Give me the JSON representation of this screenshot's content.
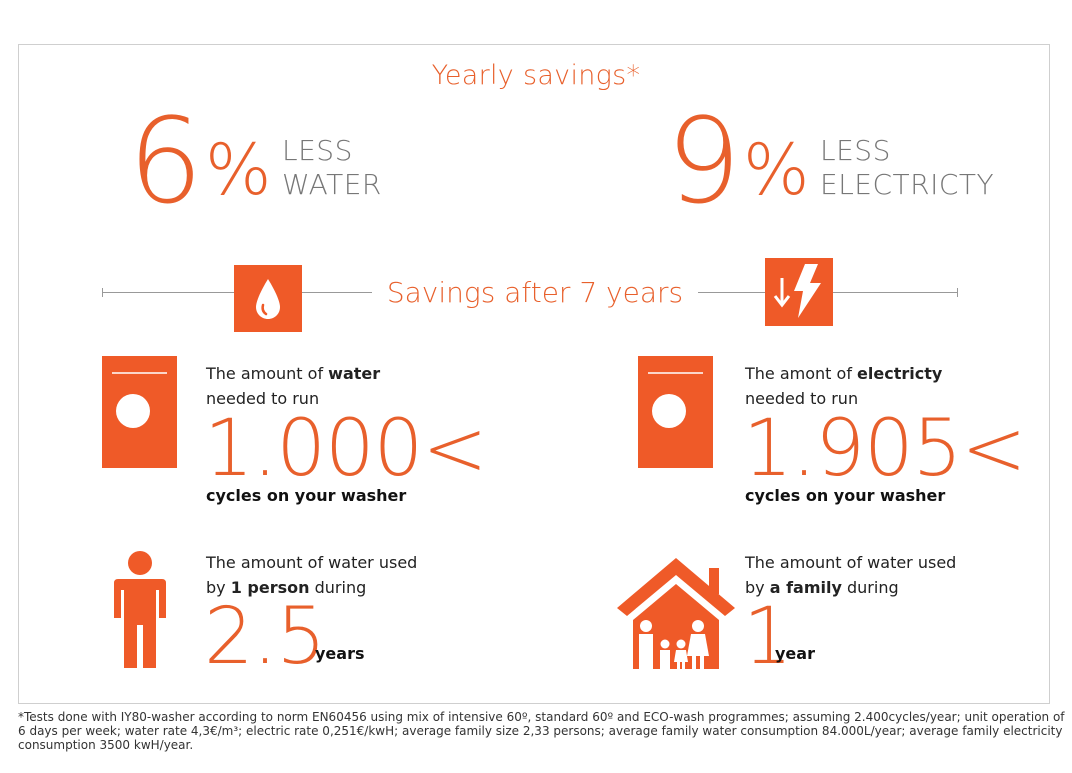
{
  "title": "Yearly savings*",
  "water_stat": {
    "number": "6",
    "percent": "%",
    "line1": "LESS",
    "line2": "WATER"
  },
  "electricity_stat": {
    "number": "9",
    "percent": "%",
    "line1": "LESS",
    "line2": "ELECTRICTY"
  },
  "section_title": "Savings after 7 years",
  "water_cycles": {
    "pre": "The amount of ",
    "bold": "water",
    "line2": "needed to run",
    "number": "1.000<",
    "suffix": "cycles on your washer"
  },
  "electricity_cycles": {
    "pre": "The amont of ",
    "bold": "electricty",
    "line2": "needed to run",
    "number": "1.905<",
    "suffix": "cycles on your washer"
  },
  "person": {
    "line1": "The amount of water used",
    "pre": "by ",
    "bold": "1 person",
    "post": " during",
    "number": "2.5",
    "unit": "years"
  },
  "family": {
    "line1": "The amount of water used",
    "pre": "by ",
    "bold": "a family",
    "post": " during",
    "number": "1",
    "unit": "year"
  },
  "footnote": "*Tests done with IY80-washer according to norm EN60456 using mix of intensive 60º, standard 60º and ECO-wash programmes; assuming 2.400cycles/year; unit operation of 6 days per week; water rate 4,3€/m³; electric rate 0,251€/kwH; average family size 2,33 persons; average family water consumption 84.000L/year; average family electricity consumption 3500 kwH/year.",
  "colors": {
    "accent": "#ef5a28",
    "text_accent": "#e8602c",
    "gray": "#777777"
  },
  "icons": [
    "water-drop-icon",
    "electricity-down-icon",
    "washer-icon",
    "person-icon",
    "family-house-icon"
  ]
}
